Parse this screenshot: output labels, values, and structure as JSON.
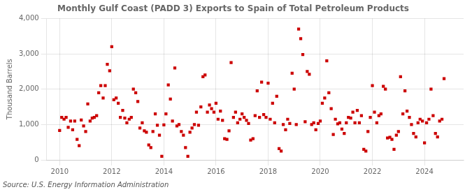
{
  "chart_data": {
    "type": "scatter",
    "title": "Monthly Gulf Coast (PADD 3) Exports to Spain of Total Petroleum Products",
    "y_label": "Thousand Barrels",
    "annotations": [
      "Source: U.S. Energy Information Administration"
    ],
    "color": "#cc0000",
    "marker": "square",
    "grid": true,
    "xlim": [
      2009.5,
      2025.5
    ],
    "xticks": [
      2010,
      2012,
      2014,
      2016,
      2018,
      2020,
      2022,
      2024
    ],
    "ylim": [
      0,
      4000
    ],
    "yticks": [
      0,
      {
        "value": 1000,
        "label": "1,000"
      },
      {
        "value": 2000,
        "label": "2,000"
      },
      {
        "value": 3000,
        "label": "3,000"
      },
      {
        "value": 4000,
        "label": "4,000"
      }
    ],
    "x": [
      2010.0,
      2010.08,
      2010.17,
      2010.25,
      2010.33,
      2010.42,
      2010.5,
      2010.58,
      2010.67,
      2010.75,
      2010.83,
      2010.92,
      2011.0,
      2011.08,
      2011.17,
      2011.25,
      2011.33,
      2011.42,
      2011.5,
      2011.58,
      2011.67,
      2011.75,
      2011.83,
      2011.92,
      2012.0,
      2012.08,
      2012.17,
      2012.25,
      2012.33,
      2012.42,
      2012.5,
      2012.58,
      2012.67,
      2012.75,
      2012.83,
      2012.92,
      2013.0,
      2013.08,
      2013.17,
      2013.25,
      2013.33,
      2013.42,
      2013.5,
      2013.58,
      2013.67,
      2013.75,
      2013.83,
      2013.92,
      2014.0,
      2014.08,
      2014.17,
      2014.25,
      2014.33,
      2014.42,
      2014.5,
      2014.58,
      2014.67,
      2014.75,
      2014.83,
      2014.92,
      2015.0,
      2015.08,
      2015.17,
      2015.25,
      2015.33,
      2015.42,
      2015.5,
      2015.58,
      2015.67,
      2015.75,
      2015.83,
      2015.92,
      2016.0,
      2016.08,
      2016.17,
      2016.25,
      2016.33,
      2016.42,
      2016.5,
      2016.58,
      2016.67,
      2016.75,
      2016.83,
      2016.92,
      2017.0,
      2017.08,
      2017.17,
      2017.25,
      2017.33,
      2017.42,
      2017.5,
      2017.58,
      2017.67,
      2017.75,
      2017.83,
      2017.92,
      2018.0,
      2018.08,
      2018.17,
      2018.25,
      2018.33,
      2018.42,
      2018.5,
      2018.58,
      2018.67,
      2018.75,
      2018.83,
      2018.92,
      2019.0,
      2019.08,
      2019.17,
      2019.25,
      2019.33,
      2019.42,
      2019.5,
      2019.58,
      2019.67,
      2019.75,
      2019.83,
      2019.92,
      2020.0,
      2020.08,
      2020.17,
      2020.25,
      2020.33,
      2020.42,
      2020.5,
      2020.58,
      2020.67,
      2020.75,
      2020.83,
      2020.92,
      2021.0,
      2021.08,
      2021.17,
      2021.25,
      2021.33,
      2021.42,
      2021.5,
      2021.58,
      2021.67,
      2021.75,
      2021.83,
      2021.92,
      2022.0,
      2022.08,
      2022.17,
      2022.25,
      2022.33,
      2022.42,
      2022.5,
      2022.58,
      2022.67,
      2022.75,
      2022.83,
      2022.92,
      2023.0,
      2023.08,
      2023.17,
      2023.25,
      2023.33,
      2023.42,
      2023.5,
      2023.58,
      2023.67,
      2023.75,
      2023.83,
      2023.92,
      2024.0,
      2024.08,
      2024.17,
      2024.25,
      2024.33,
      2024.42,
      2024.5,
      2024.58,
      2024.67,
      2024.75
    ],
    "values": [
      830,
      1200,
      1150,
      1200,
      920,
      1100,
      850,
      1100,
      580,
      400,
      1130,
      960,
      800,
      1580,
      1100,
      1180,
      1200,
      1250,
      1900,
      2100,
      1750,
      2100,
      2700,
      2520,
      3200,
      1700,
      1750,
      1600,
      1200,
      1400,
      1180,
      1050,
      1150,
      1200,
      2000,
      1900,
      1650,
      900,
      1050,
      820,
      780,
      420,
      350,
      800,
      1300,
      980,
      700,
      100,
      990,
      1300,
      2120,
      1720,
      1100,
      2600,
      960,
      1000,
      800,
      700,
      350,
      100,
      780,
      900,
      1000,
      1350,
      980,
      1500,
      2350,
      2400,
      1350,
      1550,
      1450,
      1350,
      1600,
      1150,
      1380,
      1120,
      600,
      580,
      820,
      2750,
      1200,
      1350,
      1050,
      1150,
      1300,
      1200,
      1120,
      1030,
      560,
      600,
      1250,
      1950,
      1200,
      2200,
      1280,
      1200,
      2170,
      1150,
      1600,
      1050,
      1800,
      320,
      250,
      1000,
      850,
      1150,
      1030,
      2450,
      2000,
      1000,
      3700,
      3430,
      2980,
      1080,
      2500,
      2420,
      1000,
      1050,
      850,
      1030,
      1100,
      1600,
      1750,
      2800,
      1900,
      1450,
      720,
      1150,
      1020,
      1050,
      870,
      750,
      1050,
      1200,
      1180,
      1350,
      1050,
      1400,
      1050,
      1250,
      300,
      250,
      800,
      1200,
      2100,
      1350,
      1050,
      1250,
      1300,
      2080,
      2000,
      620,
      640,
      580,
      300,
      700,
      800,
      2350,
      1300,
      1950,
      1380,
      1200,
      1000,
      750,
      650,
      1050,
      1150,
      1100,
      480,
      1050,
      1150,
      2000,
      1250,
      750,
      650,
      1100,
      1150,
      2300
    ]
  }
}
